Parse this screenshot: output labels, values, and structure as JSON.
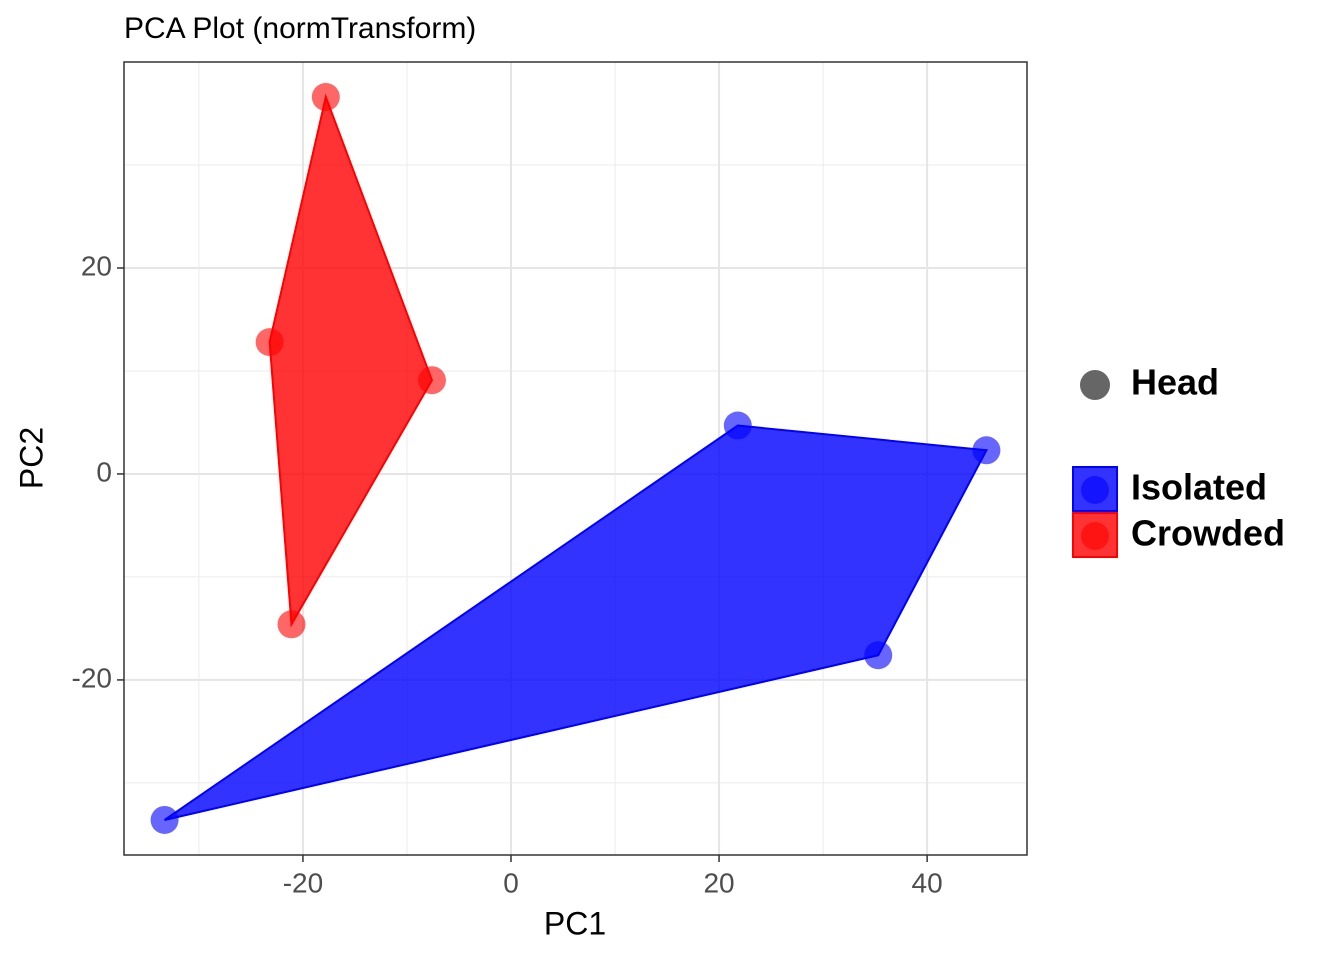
{
  "chart_data": {
    "type": "scatter",
    "title": "PCA Plot (normTransform)",
    "x_label": "PC1",
    "y_label": "PC2",
    "xlim": [
      -37.2,
      49.6
    ],
    "ylim": [
      -37.0,
      40.0
    ],
    "xticks": [
      -20,
      0,
      20,
      40
    ],
    "yticks": [
      -20,
      0,
      20
    ],
    "xminor": [
      -30,
      -10,
      10,
      30
    ],
    "yminor": [
      -30,
      -10,
      10,
      30
    ],
    "grid": true,
    "legend": "right",
    "shape_legend": [
      "Head"
    ],
    "series": [
      {
        "name": "Isolated",
        "color": "#0000ff",
        "x": [
          21.8,
          45.7,
          35.3,
          -33.3
        ],
        "values": [
          4.7,
          2.3,
          -17.6,
          -33.6
        ]
      },
      {
        "name": "Crowded",
        "color": "#ff0000",
        "x": [
          -17.8,
          -7.6,
          -21.1,
          -23.2
        ],
        "values": [
          36.6,
          9.1,
          -14.6,
          12.8
        ]
      }
    ]
  }
}
